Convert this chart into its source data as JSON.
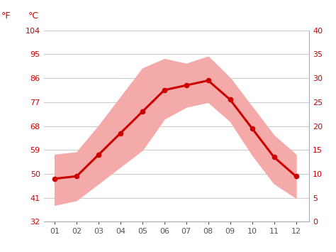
{
  "months": [
    1,
    2,
    3,
    4,
    5,
    6,
    7,
    8,
    9,
    10,
    11,
    12
  ],
  "month_labels": [
    "01",
    "02",
    "03",
    "04",
    "05",
    "06",
    "07",
    "08",
    "09",
    "10",
    "11",
    "12"
  ],
  "mean_temp_c": [
    9.0,
    9.5,
    14.0,
    18.5,
    23.0,
    27.5,
    28.5,
    29.5,
    25.5,
    19.5,
    13.5,
    9.5
  ],
  "high_temp_c": [
    14.0,
    14.5,
    20.0,
    26.0,
    32.0,
    34.0,
    33.0,
    34.5,
    30.0,
    24.0,
    18.0,
    14.0
  ],
  "low_temp_c": [
    3.5,
    4.5,
    8.0,
    11.5,
    15.0,
    21.5,
    24.0,
    25.0,
    21.0,
    14.0,
    8.0,
    5.0
  ],
  "line_color": "#cc0000",
  "fill_color": "#f5aaaa",
  "bg_color": "#ffffff",
  "grid_color": "#cccccc",
  "tick_label_color_y": "#cc0000",
  "tick_label_color_x": "#555555",
  "yticks_c": [
    0,
    5,
    10,
    15,
    20,
    25,
    30,
    35,
    40
  ],
  "yticks_f": [
    32,
    41,
    50,
    59,
    68,
    77,
    86,
    95,
    104
  ],
  "ymin": 0,
  "ymax": 40,
  "header_f": "°F",
  "header_c": "°C"
}
